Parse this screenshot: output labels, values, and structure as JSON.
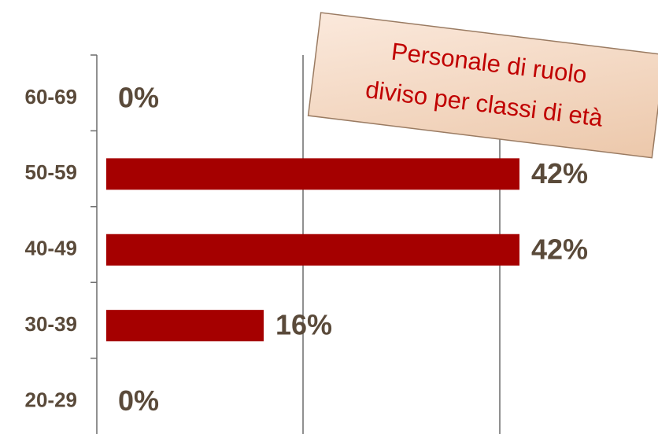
{
  "chart_data": {
    "type": "bar",
    "orientation": "horizontal",
    "title_lines": [
      "Personale di ruolo",
      "diviso per classi di età"
    ],
    "categories": [
      "60-69",
      "50-59",
      "40-49",
      "30-39",
      "20-29"
    ],
    "values": [
      0,
      42,
      42,
      16,
      0
    ],
    "value_labels": [
      "0%",
      "42%",
      "42%",
      "16%",
      "0%"
    ],
    "color": "#a50000",
    "xlim": [
      0,
      56
    ],
    "xgrid": [
      20,
      40
    ],
    "grid": true
  }
}
